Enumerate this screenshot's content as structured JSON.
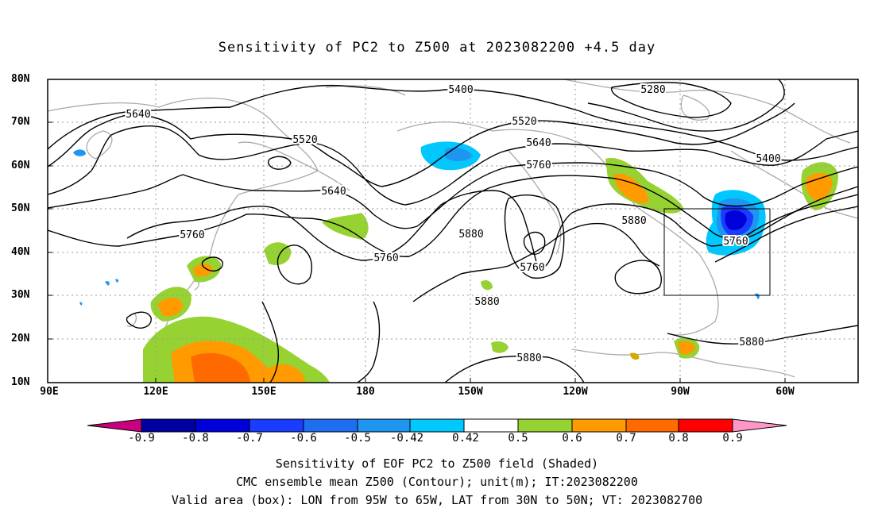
{
  "title": "Sensitivity of PC2 to Z500 at 2023082200 +4.5 day",
  "lat_labels": [
    "80N",
    "70N",
    "60N",
    "50N",
    "40N",
    "30N",
    "20N",
    "10N"
  ],
  "lon_labels": [
    "90E",
    "120E",
    "150E",
    "180",
    "150W",
    "120W",
    "90W",
    "60W"
  ],
  "contour_labels": [
    "5400",
    "5280",
    "5640",
    "5520",
    "5520",
    "5640",
    "5760",
    "5640",
    "5400",
    "5760",
    "5880",
    "5760",
    "5760",
    "5880",
    "5760",
    "5880",
    "5880",
    "5880"
  ],
  "colorbar": {
    "labels": [
      "-0.9",
      "-0.8",
      "-0.7",
      "-0.6",
      "-0.5",
      "-0.42",
      "0.42",
      "0.5",
      "0.6",
      "0.7",
      "0.8",
      "0.9"
    ],
    "colors": [
      "#c8007e",
      "#0000a0",
      "#0000d8",
      "#1a3cff",
      "#1e6ef0",
      "#1e96f0",
      "#00c8ff",
      "#ffffff",
      "#96d232",
      "#ff9a00",
      "#ff6a00",
      "#ff3c00",
      "#ff0000",
      "#ff96c8"
    ]
  },
  "captions": [
    "Sensitivity of EOF PC2 to Z500 field (Shaded)",
    "CMC ensemble mean Z500 (Contour); unit(m); IT:2023082200",
    "Valid area (box): LON from 95W to 65W, LAT from 30N to 50N; VT: 2023082700"
  ]
}
